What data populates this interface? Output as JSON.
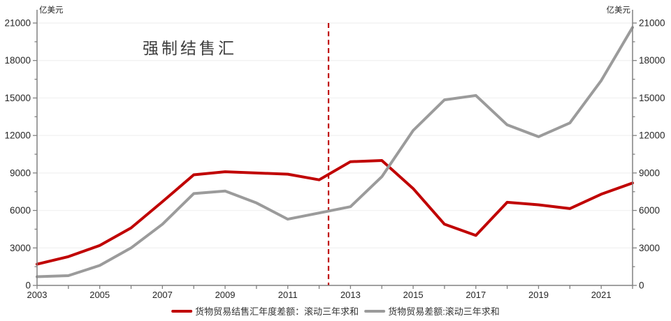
{
  "annotation": "强制结售汇",
  "axis": {
    "unit_left": "亿美元",
    "unit_right": "亿美元"
  },
  "chart_data": {
    "type": "line",
    "title": "",
    "annotation": "强制结售汇",
    "x": [
      2003,
      2004,
      2005,
      2006,
      2007,
      2008,
      2009,
      2010,
      2011,
      2012,
      2013,
      2014,
      2015,
      2016,
      2017,
      2018,
      2019,
      2020,
      2021,
      2022
    ],
    "series": [
      {
        "name": "货物贸易结售汇年度差额：滚动三年求和",
        "color": "#c00000",
        "values": [
          1700,
          2300,
          3200,
          4600,
          6700,
          8850,
          9100,
          9000,
          8900,
          8450,
          9900,
          10000,
          7750,
          4900,
          4000,
          6650,
          6450,
          6150,
          7300,
          8200
        ]
      },
      {
        "name": "货物贸易差额:滚动三年求和",
        "color": "#9b9b9b",
        "values": [
          700,
          780,
          1600,
          3000,
          4900,
          7350,
          7550,
          6600,
          5300,
          5800,
          6300,
          8700,
          12400,
          14850,
          15200,
          12850,
          11900,
          13000,
          16400,
          20650
        ]
      }
    ],
    "vline": {
      "x": 2012.3,
      "color": "#c00000",
      "style": "dashed"
    },
    "xlim": [
      2003,
      2022
    ],
    "ylim": [
      0,
      21000
    ],
    "ytick_major_step": 3000,
    "ytick_minor_step": 1500,
    "ytick_labels": [
      "0",
      "3000",
      "6000",
      "9000",
      "12000",
      "15000",
      "18000",
      "21000"
    ],
    "xtick_labels": [
      "2003",
      "2005",
      "2007",
      "2009",
      "2011",
      "2013",
      "2015",
      "2017",
      "2019",
      "2021"
    ],
    "unit_left": "亿美元",
    "unit_right": "亿美元",
    "grid": "horizontal-faint",
    "legend_position": "bottom",
    "colors": {
      "axis": "#808080",
      "tick_label": "#262626",
      "gridline": "#f2f2f2",
      "annotation_text": "#3d3d3d"
    }
  }
}
